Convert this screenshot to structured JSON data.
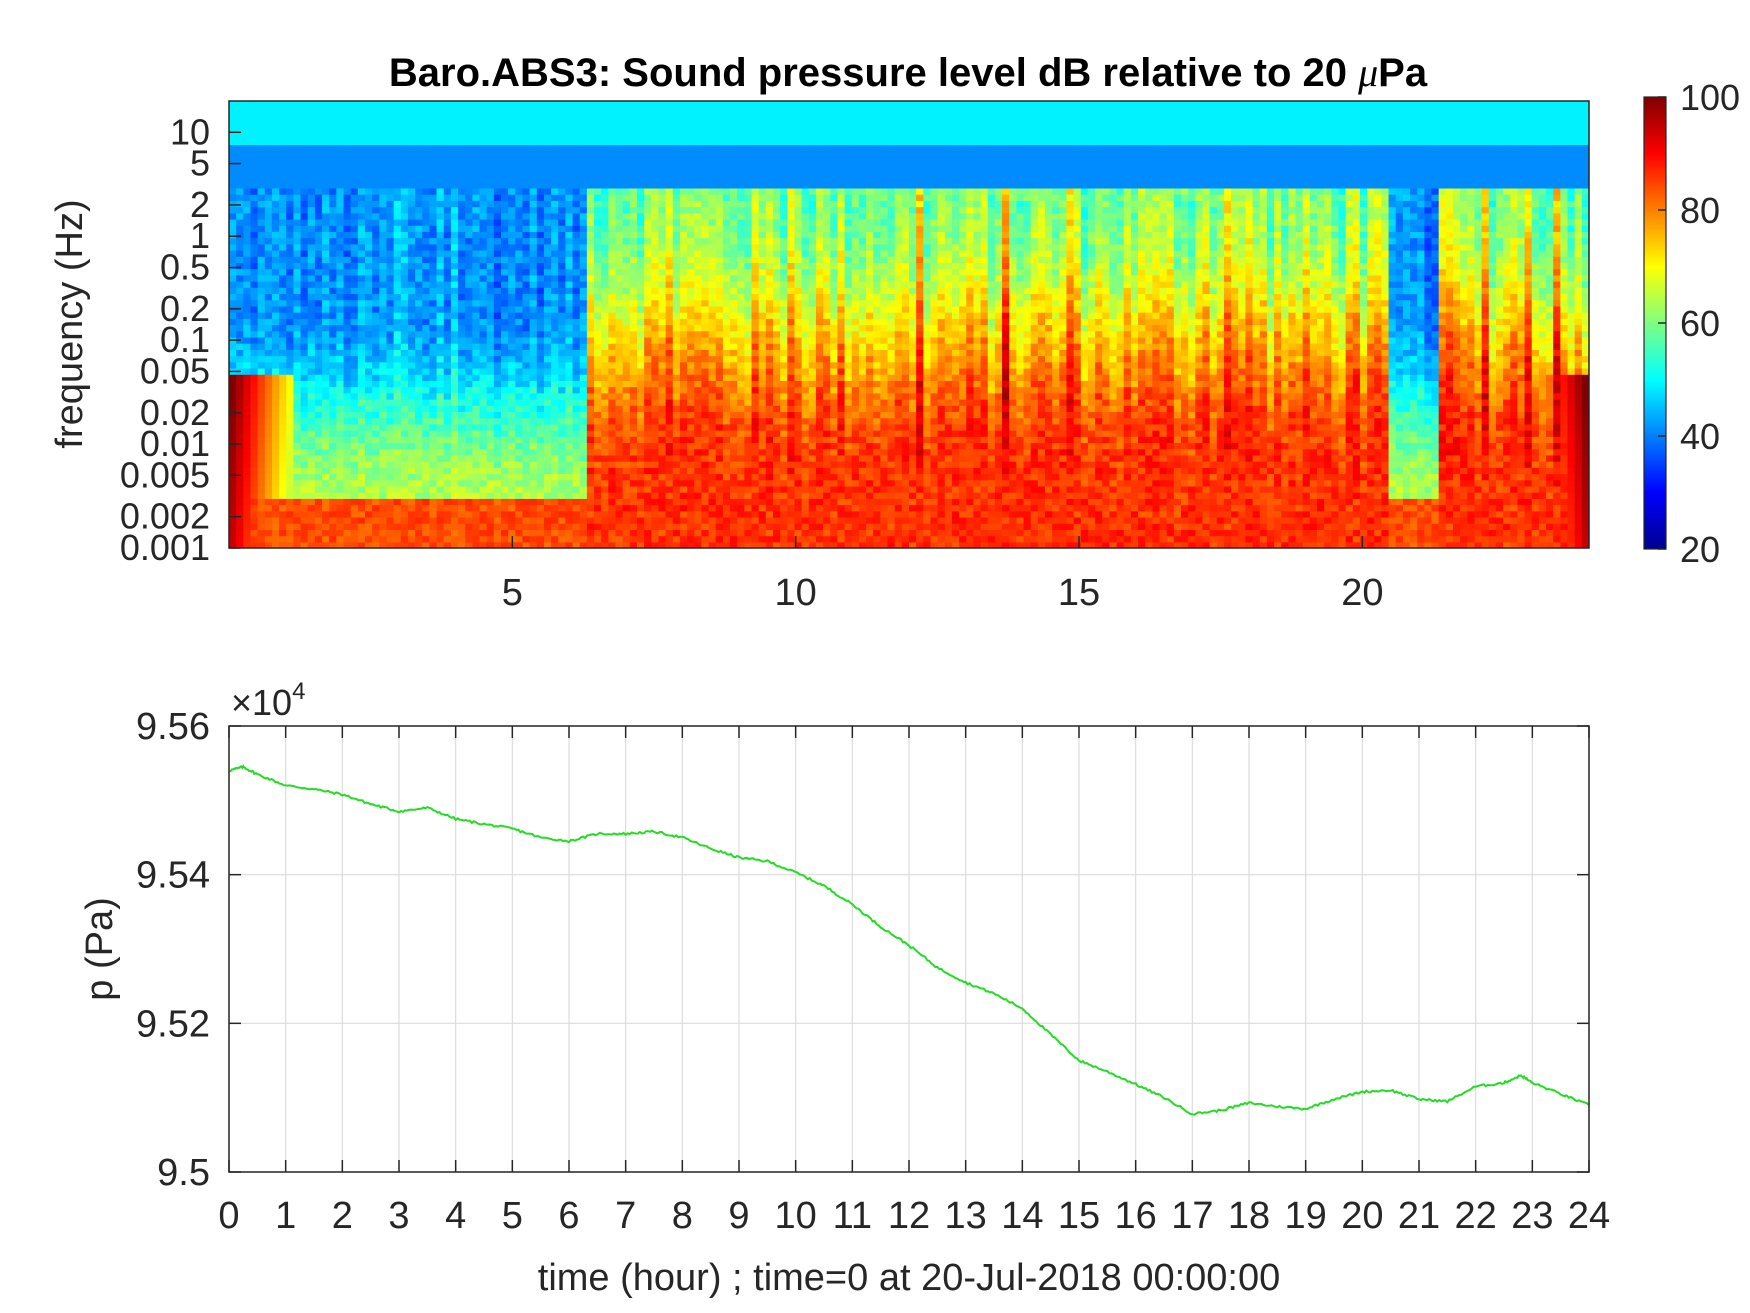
{
  "figure": {
    "title_text": "Baro.ABS3: Sound pressure level dB relative to 20 ",
    "title_mu": "μ",
    "title_unit": "Pa"
  },
  "chart_data": [
    {
      "type": "heatmap",
      "title": "Baro.ABS3: Sound pressure level dB relative to 20 μPa",
      "ylabel": "frequency (Hz)",
      "yscale": "log",
      "ylim": [
        0.001,
        20
      ],
      "xlim": [
        0,
        24
      ],
      "x_ticks": [
        5,
        10,
        15,
        20
      ],
      "x_tick_labels": [
        "5",
        "10",
        "15",
        "20"
      ],
      "y_ticks": [
        0.001,
        0.002,
        0.005,
        0.01,
        0.02,
        0.05,
        0.1,
        0.2,
        0.5,
        1,
        2,
        5,
        10
      ],
      "y_tick_labels": [
        "0.001",
        "0.002",
        "0.005",
        "0.01",
        "0.02",
        "0.05",
        "0.1",
        "0.2",
        "0.5",
        "1",
        "2",
        "5",
        "10"
      ],
      "colormap": "jet",
      "clim": [
        20,
        100
      ],
      "colorbar_ticks": [
        20,
        40,
        60,
        80,
        100
      ],
      "colorbar_tick_labels": [
        "20",
        "40",
        "60",
        "80",
        "100"
      ],
      "active_periods_hours": [
        [
          6.3,
          20.4
        ],
        [
          21.3,
          24
        ]
      ],
      "grid": false
    },
    {
      "type": "line",
      "xlabel": "time (hour) ; time=0 at 20-Jul-2018 00:00:00",
      "ylabel": "p (Pa)",
      "y_exponent_label": "×10",
      "y_exponent": "4",
      "xlim": [
        0,
        24
      ],
      "ylim": [
        95000,
        95600
      ],
      "x_ticks": [
        0,
        1,
        2,
        3,
        4,
        5,
        6,
        7,
        8,
        9,
        10,
        11,
        12,
        13,
        14,
        15,
        16,
        17,
        18,
        19,
        20,
        21,
        22,
        23,
        24
      ],
      "y_ticks": [
        95000,
        95200,
        95400,
        95600
      ],
      "y_tick_labels": [
        "9.5",
        "9.52",
        "9.54",
        "9.56"
      ],
      "grid": true,
      "series": [
        {
          "color": "#22dd22",
          "x": [
            0,
            0.25,
            0.5,
            1,
            1.5,
            2,
            2.5,
            3,
            3.5,
            4,
            4.5,
            5,
            5.5,
            6,
            6.5,
            7,
            7.5,
            8,
            8.5,
            9,
            9.5,
            10,
            10.5,
            11,
            11.5,
            12,
            12.5,
            13,
            13.5,
            14,
            14.5,
            15,
            15.5,
            16,
            16.5,
            17,
            17.5,
            18,
            18.5,
            19,
            19.5,
            20,
            20.5,
            21,
            21.5,
            22,
            22.5,
            22.8,
            23,
            23.5,
            24
          ],
          "y": [
            95540,
            95545,
            95535,
            95520,
            95515,
            95508,
            95495,
            95485,
            95490,
            95475,
            95468,
            95462,
            95450,
            95445,
            95455,
            95455,
            95458,
            95450,
            95435,
            95423,
            95418,
            95403,
            95385,
            95360,
            95330,
            95305,
            95275,
            95255,
            95240,
            95220,
            95185,
            95150,
            95135,
            95118,
            95100,
            95078,
            95083,
            95093,
            95088,
            95085,
            95098,
            95108,
            95110,
            95098,
            95095,
            95115,
            95120,
            95130,
            95120,
            95105,
            95090
          ]
        }
      ]
    }
  ]
}
